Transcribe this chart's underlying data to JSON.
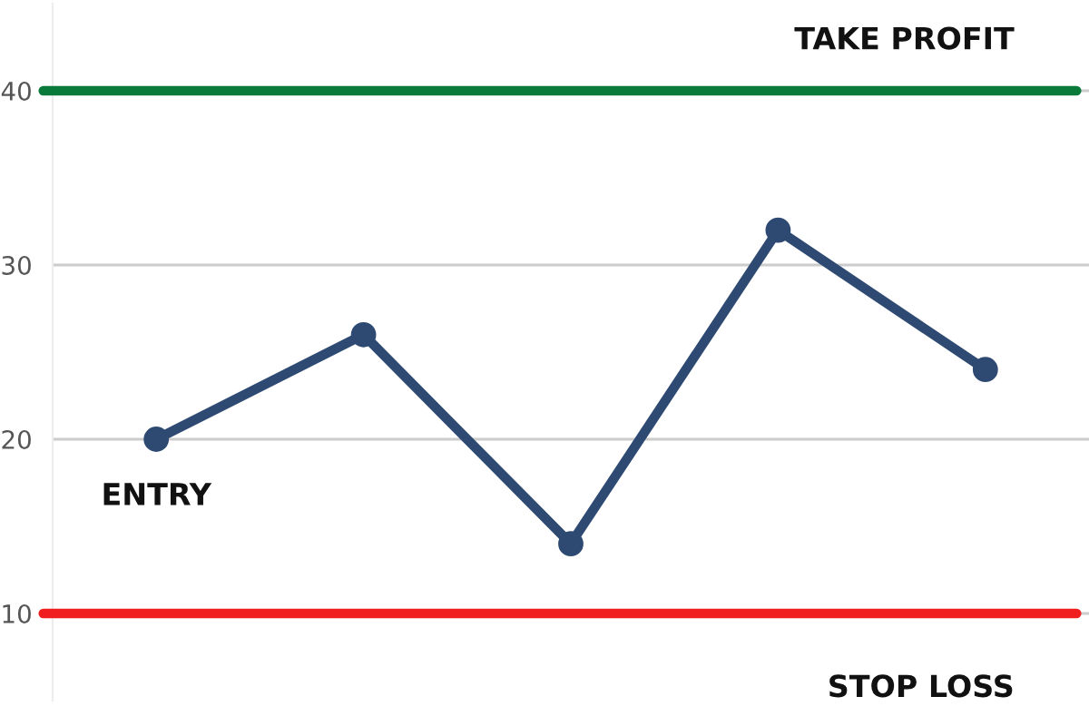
{
  "chart_data": {
    "type": "line",
    "categories": [
      null,
      null,
      null,
      null,
      null
    ],
    "series": [
      {
        "color": "#2e4a72",
        "values": [
          20,
          26,
          14,
          32,
          24
        ]
      }
    ],
    "ylim": [
      5,
      45
    ],
    "yticks": [
      10,
      20,
      30,
      40
    ],
    "grid": "y",
    "marker": "circle",
    "line_style": "solid",
    "tick_labels": "y",
    "ref_lines": [
      {
        "axis": "y",
        "value": 40,
        "label": "TAKE PROFIT",
        "color": "#0a7a3a"
      },
      {
        "axis": "y",
        "value": 10,
        "label": "STOP LOSS",
        "color": "#f01e1e"
      }
    ],
    "annotations": [
      "ENTRY"
    ]
  }
}
